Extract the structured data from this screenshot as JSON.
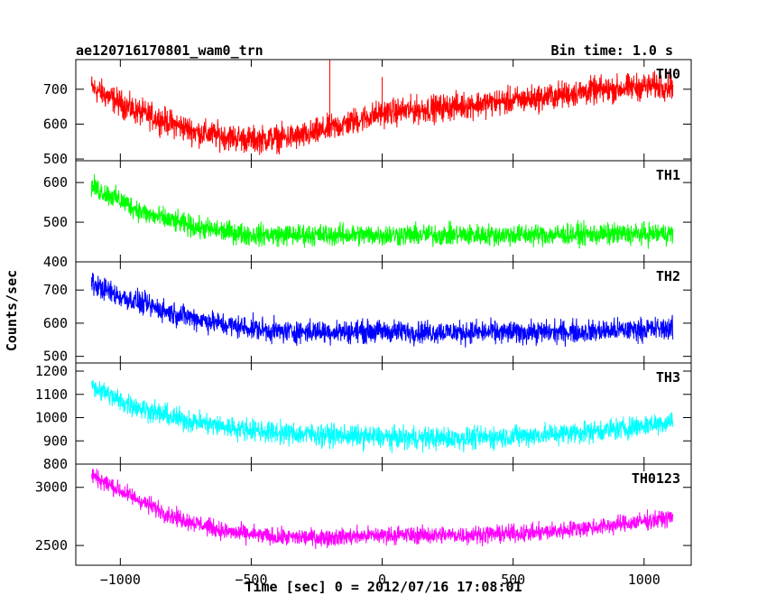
{
  "chart_data": {
    "type": "line",
    "title_left": "ae120716170801_wam0_trn",
    "title_right": "Bin time: 1.0 s",
    "xlabel": "Time [sec] 0 = 2012/07/16 17:08:01",
    "ylabel": "Counts/sec",
    "xlim": [
      -1170,
      1180
    ],
    "x_ticks": [
      -1000,
      -500,
      0,
      500,
      1000
    ],
    "x_tick_labels": [
      "−1000",
      "−500",
      "0",
      "500",
      "1000"
    ],
    "x_range": [
      -1110,
      1110
    ],
    "panels": [
      {
        "name": "TH0",
        "color": "#ff0000",
        "ylim": [
          495,
          785
        ],
        "y_ticks": [
          500,
          600,
          700
        ],
        "y_tick_labels": [
          "500",
          "600",
          "700"
        ],
        "trend": [
          [
            -1110,
            705
          ],
          [
            -950,
            640
          ],
          [
            -700,
            575
          ],
          [
            -500,
            555
          ],
          [
            -300,
            565
          ],
          [
            -100,
            610
          ],
          [
            0,
            632
          ],
          [
            200,
            645
          ],
          [
            400,
            660
          ],
          [
            600,
            675
          ],
          [
            800,
            695
          ],
          [
            1000,
            708
          ],
          [
            1110,
            710
          ]
        ],
        "noise": 28,
        "spikes": [
          [
            -200,
            785
          ],
          [
            0,
            735
          ]
        ]
      },
      {
        "name": "TH1",
        "color": "#00ff00",
        "ylim": [
          400,
          655
        ],
        "y_ticks": [
          400,
          500,
          600
        ],
        "y_tick_labels": [
          "400",
          "500",
          "600"
        ],
        "trend": [
          [
            -1110,
            590
          ],
          [
            -1000,
            555
          ],
          [
            -900,
            520
          ],
          [
            -700,
            485
          ],
          [
            -500,
            468
          ],
          [
            0,
            468
          ],
          [
            500,
            468
          ],
          [
            1000,
            470
          ],
          [
            1110,
            472
          ]
        ],
        "noise": 20
      },
      {
        "name": "TH2",
        "color": "#0000ff",
        "ylim": [
          480,
          785
        ],
        "y_ticks": [
          500,
          600,
          700
        ],
        "y_tick_labels": [
          "500",
          "600",
          "700"
        ],
        "trend": [
          [
            -1110,
            720
          ],
          [
            -1000,
            680
          ],
          [
            -800,
            630
          ],
          [
            -600,
            595
          ],
          [
            -400,
            575
          ],
          [
            0,
            575
          ],
          [
            500,
            572
          ],
          [
            800,
            575
          ],
          [
            1110,
            585
          ]
        ],
        "noise": 25
      },
      {
        "name": "TH3",
        "color": "#00ffff",
        "ylim": [
          800,
          1235
        ],
        "y_ticks": [
          800,
          900,
          1000,
          1100,
          1200
        ],
        "y_tick_labels": [
          "800",
          "900",
          "1000",
          "1100",
          "1200"
        ],
        "trend": [
          [
            -1110,
            1140
          ],
          [
            -1000,
            1070
          ],
          [
            -800,
            1000
          ],
          [
            -600,
            960
          ],
          [
            -400,
            935
          ],
          [
            0,
            915
          ],
          [
            300,
            910
          ],
          [
            600,
            925
          ],
          [
            900,
            950
          ],
          [
            1110,
            985
          ]
        ],
        "noise": 35
      },
      {
        "name": "TH0123",
        "color": "#ff00ff",
        "ylim": [
          2330,
          3200
        ],
        "y_ticks": [
          2500,
          3000
        ],
        "y_tick_labels": [
          "2500",
          "3000"
        ],
        "trend": [
          [
            -1110,
            3110
          ],
          [
            -1000,
            2970
          ],
          [
            -800,
            2750
          ],
          [
            -600,
            2620
          ],
          [
            -400,
            2570
          ],
          [
            -200,
            2570
          ],
          [
            0,
            2590
          ],
          [
            300,
            2590
          ],
          [
            600,
            2610
          ],
          [
            900,
            2680
          ],
          [
            1110,
            2740
          ]
        ],
        "noise": 55
      }
    ]
  }
}
